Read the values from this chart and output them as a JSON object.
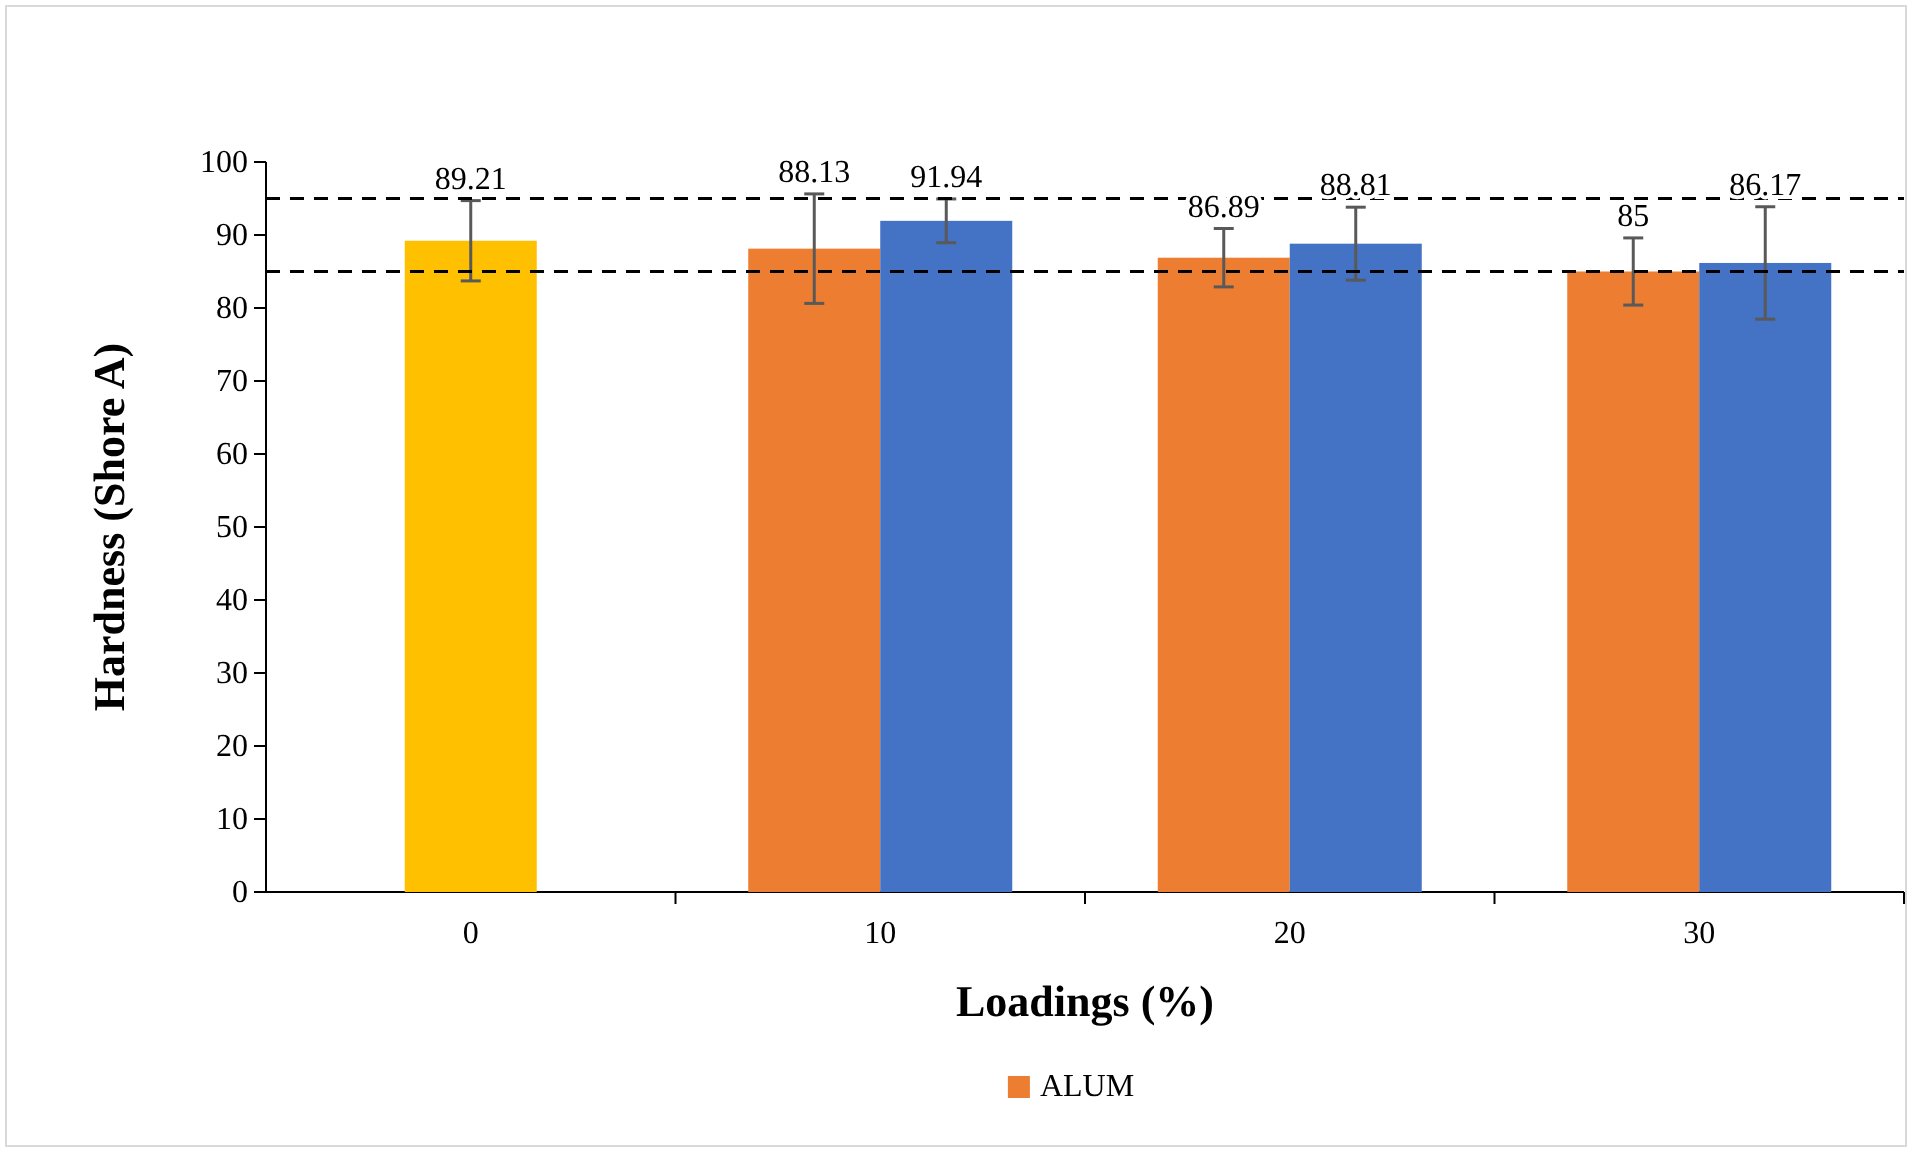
{
  "chart_data": {
    "type": "bar",
    "xlabel": "Loadings (%)",
    "ylabel": "Hardness (Shore A)",
    "categories": [
      "0",
      "10",
      "20",
      "30"
    ],
    "series": [
      {
        "color": "#ffc000",
        "values": [
          89.21,
          null,
          null,
          null
        ],
        "errors": [
          5.5,
          null,
          null,
          null
        ]
      },
      {
        "name": "ALUM",
        "color": "#ed7d31",
        "values": [
          null,
          88.13,
          86.89,
          85
        ],
        "errors": [
          null,
          7.5,
          4,
          4.6
        ]
      },
      {
        "color": "#4472c4",
        "values": [
          null,
          91.94,
          88.81,
          86.17
        ],
        "errors": [
          null,
          3,
          5,
          7.7
        ]
      }
    ],
    "ylim": [
      0,
      100
    ],
    "yticks": [
      0,
      10,
      20,
      30,
      40,
      50,
      60,
      70,
      80,
      90,
      100
    ],
    "grid": false,
    "legend": "bottom",
    "data_labels": true,
    "ref_lines": [
      {
        "axis": "y",
        "value": 95,
        "color": "#000000",
        "line_style": "dashed"
      },
      {
        "axis": "y",
        "value": 85,
        "color": "#000000",
        "line_style": "dashed"
      }
    ]
  }
}
